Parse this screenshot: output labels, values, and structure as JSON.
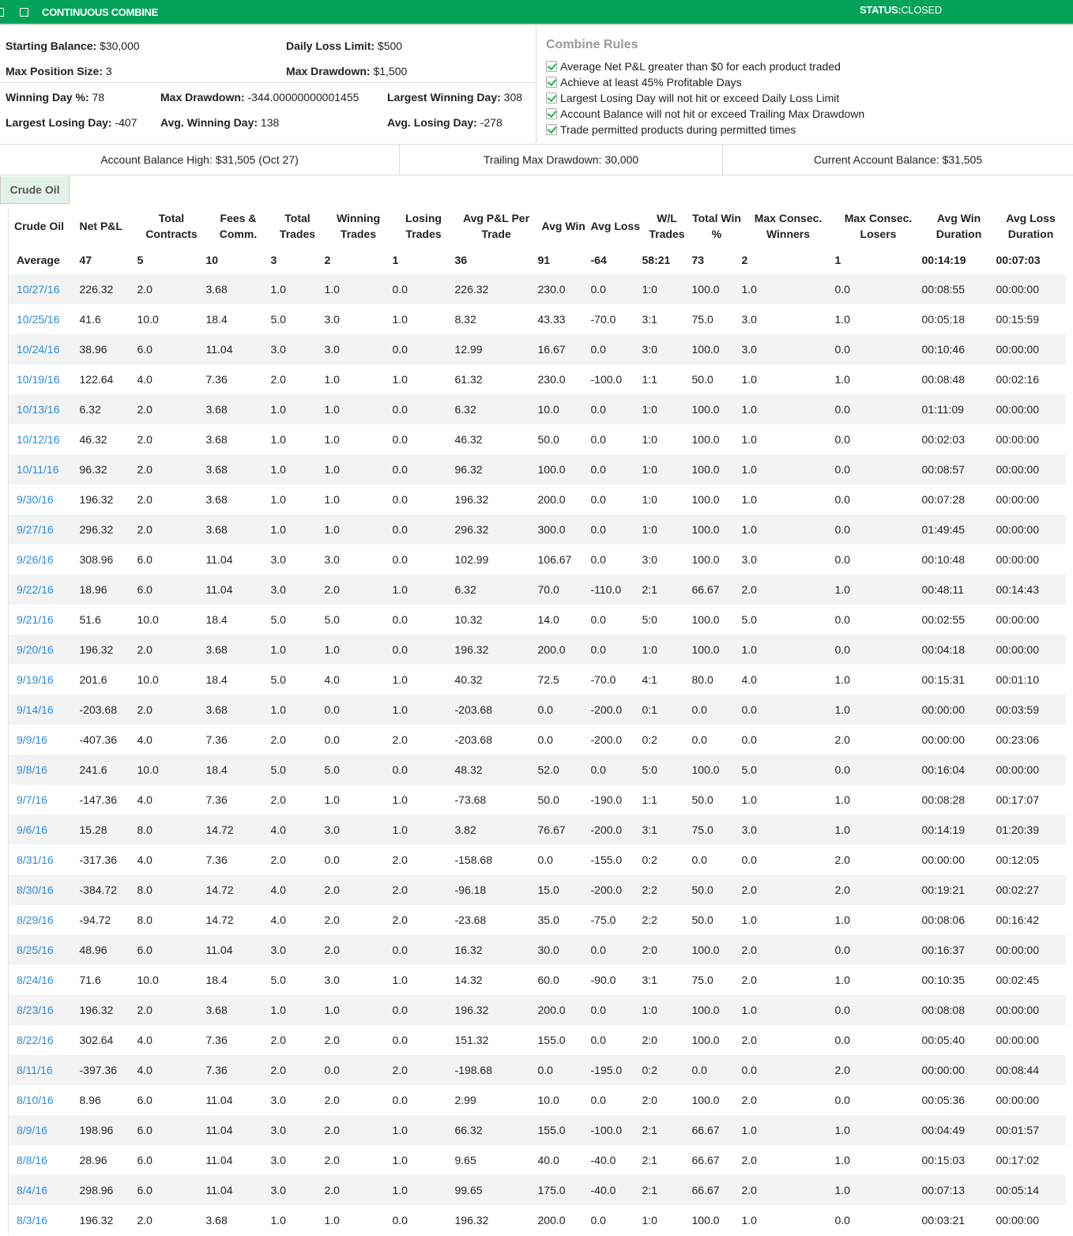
{
  "header": {
    "title": "CONTINUOUS COMBINE",
    "status_label": "STATUS:",
    "status_value": "CLOSED"
  },
  "settings": {
    "starting_balance": {
      "label": "Starting Balance:",
      "value": "$30,000"
    },
    "daily_loss_limit": {
      "label": "Daily Loss Limit:",
      "value": "$500"
    },
    "max_position_size": {
      "label": "Max Position Size:",
      "value": "3"
    },
    "max_drawdown": {
      "label": "Max Drawdown:",
      "value": "$1,500"
    }
  },
  "stats": {
    "winning_day_pct": {
      "label": "Winning Day %:",
      "value": "78"
    },
    "max_drawdown": {
      "label": "Max Drawdown:",
      "value": "-344.00000000001455"
    },
    "largest_winning_day": {
      "label": "Largest Winning Day:",
      "value": "308"
    },
    "largest_losing_day": {
      "label": "Largest Losing Day:",
      "value": "-407"
    },
    "avg_winning_day": {
      "label": "Avg. Winning Day:",
      "value": "138"
    },
    "avg_losing_day": {
      "label": "Avg. Losing Day:",
      "value": "-278"
    }
  },
  "rules": {
    "title": "Combine Rules",
    "items": [
      {
        "label": "Average Net P&L greater than $0 for each product traded",
        "checked": true
      },
      {
        "label": "Achieve at least 45% Profitable Days",
        "checked": true
      },
      {
        "label": "Largest Losing Day will not hit or exceed Daily Loss Limit",
        "checked": true
      },
      {
        "label": "Account Balance will not hit or exceed Trailing Max Drawdown",
        "checked": true
      },
      {
        "label": "Trade permitted products during permitted times",
        "checked": true
      }
    ]
  },
  "balances": {
    "high": "Account Balance High: $31,505 (Oct 27)",
    "trailing": "Trailing Max Drawdown: 30,000",
    "current": "Current Account Balance: $31,505"
  },
  "tabs": [
    {
      "label": "Crude Oil",
      "active": true
    }
  ],
  "table": {
    "headers": [
      "Crude Oil",
      "Net P&L",
      "Total Contracts",
      "Fees & Comm.",
      "Total Trades",
      "Winning Trades",
      "Losing Trades",
      "Avg P&L Per Trade",
      "Avg Win",
      "Avg Loss",
      "W/L Trades",
      "Total Win %",
      "Max Consec. Winners",
      "Max Consec. Losers",
      "Avg Win Duration",
      "Avg Loss Duration"
    ],
    "average": [
      "Average",
      "47",
      "5",
      "10",
      "3",
      "2",
      "1",
      "36",
      "91",
      "-64",
      "58:21",
      "73",
      "2",
      "1",
      "00:14:19",
      "00:07:03"
    ],
    "rows": [
      [
        "10/27/16",
        "226.32",
        "2.0",
        "3.68",
        "1.0",
        "1.0",
        "0.0",
        "226.32",
        "230.0",
        "0.0",
        "1:0",
        "100.0",
        "1.0",
        "0.0",
        "00:08:55",
        "00:00:00"
      ],
      [
        "10/25/16",
        "41.6",
        "10.0",
        "18.4",
        "5.0",
        "3.0",
        "1.0",
        "8.32",
        "43.33",
        "-70.0",
        "3:1",
        "75.0",
        "3.0",
        "1.0",
        "00:05:18",
        "00:15:59"
      ],
      [
        "10/24/16",
        "38.96",
        "6.0",
        "11.04",
        "3.0",
        "3.0",
        "0.0",
        "12.99",
        "16.67",
        "0.0",
        "3:0",
        "100.0",
        "3.0",
        "0.0",
        "00:10:46",
        "00:00:00"
      ],
      [
        "10/19/16",
        "122.64",
        "4.0",
        "7.36",
        "2.0",
        "1.0",
        "1.0",
        "61.32",
        "230.0",
        "-100.0",
        "1:1",
        "50.0",
        "1.0",
        "1.0",
        "00:08:48",
        "00:02:16"
      ],
      [
        "10/13/16",
        "6.32",
        "2.0",
        "3.68",
        "1.0",
        "1.0",
        "0.0",
        "6.32",
        "10.0",
        "0.0",
        "1:0",
        "100.0",
        "1.0",
        "0.0",
        "01:11:09",
        "00:00:00"
      ],
      [
        "10/12/16",
        "46.32",
        "2.0",
        "3.68",
        "1.0",
        "1.0",
        "0.0",
        "46.32",
        "50.0",
        "0.0",
        "1:0",
        "100.0",
        "1.0",
        "0.0",
        "00:02:03",
        "00:00:00"
      ],
      [
        "10/11/16",
        "96.32",
        "2.0",
        "3.68",
        "1.0",
        "1.0",
        "0.0",
        "96.32",
        "100.0",
        "0.0",
        "1:0",
        "100.0",
        "1.0",
        "0.0",
        "00:08:57",
        "00:00:00"
      ],
      [
        "9/30/16",
        "196.32",
        "2.0",
        "3.68",
        "1.0",
        "1.0",
        "0.0",
        "196.32",
        "200.0",
        "0.0",
        "1:0",
        "100.0",
        "1.0",
        "0.0",
        "00:07:28",
        "00:00:00"
      ],
      [
        "9/27/16",
        "296.32",
        "2.0",
        "3.68",
        "1.0",
        "1.0",
        "0.0",
        "296.32",
        "300.0",
        "0.0",
        "1:0",
        "100.0",
        "1.0",
        "0.0",
        "01:49:45",
        "00:00:00"
      ],
      [
        "9/26/16",
        "308.96",
        "6.0",
        "11.04",
        "3.0",
        "3.0",
        "0.0",
        "102.99",
        "106.67",
        "0.0",
        "3:0",
        "100.0",
        "3.0",
        "0.0",
        "00:10:48",
        "00:00:00"
      ],
      [
        "9/22/16",
        "18.96",
        "6.0",
        "11.04",
        "3.0",
        "2.0",
        "1.0",
        "6.32",
        "70.0",
        "-110.0",
        "2:1",
        "66.67",
        "2.0",
        "1.0",
        "00:48:11",
        "00:14:43"
      ],
      [
        "9/21/16",
        "51.6",
        "10.0",
        "18.4",
        "5.0",
        "5.0",
        "0.0",
        "10.32",
        "14.0",
        "0.0",
        "5:0",
        "100.0",
        "5.0",
        "0.0",
        "00:02:55",
        "00:00:00"
      ],
      [
        "9/20/16",
        "196.32",
        "2.0",
        "3.68",
        "1.0",
        "1.0",
        "0.0",
        "196.32",
        "200.0",
        "0.0",
        "1:0",
        "100.0",
        "1.0",
        "0.0",
        "00:04:18",
        "00:00:00"
      ],
      [
        "9/19/16",
        "201.6",
        "10.0",
        "18.4",
        "5.0",
        "4.0",
        "1.0",
        "40.32",
        "72.5",
        "-70.0",
        "4:1",
        "80.0",
        "4.0",
        "1.0",
        "00:15:31",
        "00:01:10"
      ],
      [
        "9/14/16",
        "-203.68",
        "2.0",
        "3.68",
        "1.0",
        "0.0",
        "1.0",
        "-203.68",
        "0.0",
        "-200.0",
        "0:1",
        "0.0",
        "0.0",
        "1.0",
        "00:00:00",
        "00:03:59"
      ],
      [
        "9/9/16",
        "-407.36",
        "4.0",
        "7.36",
        "2.0",
        "0.0",
        "2.0",
        "-203.68",
        "0.0",
        "-200.0",
        "0:2",
        "0.0",
        "0.0",
        "2.0",
        "00:00:00",
        "00:23:06"
      ],
      [
        "9/8/16",
        "241.6",
        "10.0",
        "18.4",
        "5.0",
        "5.0",
        "0.0",
        "48.32",
        "52.0",
        "0.0",
        "5:0",
        "100.0",
        "5.0",
        "0.0",
        "00:16:04",
        "00:00:00"
      ],
      [
        "9/7/16",
        "-147.36",
        "4.0",
        "7.36",
        "2.0",
        "1.0",
        "1.0",
        "-73.68",
        "50.0",
        "-190.0",
        "1:1",
        "50.0",
        "1.0",
        "1.0",
        "00:08:28",
        "00:17:07"
      ],
      [
        "9/6/16",
        "15.28",
        "8.0",
        "14.72",
        "4.0",
        "3.0",
        "1.0",
        "3.82",
        "76.67",
        "-200.0",
        "3:1",
        "75.0",
        "3.0",
        "1.0",
        "00:14:19",
        "01:20:39"
      ],
      [
        "8/31/16",
        "-317.36",
        "4.0",
        "7.36",
        "2.0",
        "0.0",
        "2.0",
        "-158.68",
        "0.0",
        "-155.0",
        "0:2",
        "0.0",
        "0.0",
        "2.0",
        "00:00:00",
        "00:12:05"
      ],
      [
        "8/30/16",
        "-384.72",
        "8.0",
        "14.72",
        "4.0",
        "2.0",
        "2.0",
        "-96.18",
        "15.0",
        "-200.0",
        "2:2",
        "50.0",
        "2.0",
        "2.0",
        "00:19:21",
        "00:02:27"
      ],
      [
        "8/29/16",
        "-94.72",
        "8.0",
        "14.72",
        "4.0",
        "2.0",
        "2.0",
        "-23.68",
        "35.0",
        "-75.0",
        "2:2",
        "50.0",
        "1.0",
        "1.0",
        "00:08:06",
        "00:16:42"
      ],
      [
        "8/25/16",
        "48.96",
        "6.0",
        "11.04",
        "3.0",
        "2.0",
        "0.0",
        "16.32",
        "30.0",
        "0.0",
        "2:0",
        "100.0",
        "2.0",
        "0.0",
        "00:16:37",
        "00:00:00"
      ],
      [
        "8/24/16",
        "71.6",
        "10.0",
        "18.4",
        "5.0",
        "3.0",
        "1.0",
        "14.32",
        "60.0",
        "-90.0",
        "3:1",
        "75.0",
        "2.0",
        "1.0",
        "00:10:35",
        "00:02:45"
      ],
      [
        "8/23/16",
        "196.32",
        "2.0",
        "3.68",
        "1.0",
        "1.0",
        "0.0",
        "196.32",
        "200.0",
        "0.0",
        "1:0",
        "100.0",
        "1.0",
        "0.0",
        "00:08:08",
        "00:00:00"
      ],
      [
        "8/22/16",
        "302.64",
        "4.0",
        "7.36",
        "2.0",
        "2.0",
        "0.0",
        "151.32",
        "155.0",
        "0.0",
        "2:0",
        "100.0",
        "2.0",
        "0.0",
        "00:05:40",
        "00:00:00"
      ],
      [
        "8/11/16",
        "-397.36",
        "4.0",
        "7.36",
        "2.0",
        "0.0",
        "2.0",
        "-198.68",
        "0.0",
        "-195.0",
        "0:2",
        "0.0",
        "0.0",
        "2.0",
        "00:00:00",
        "00:08:44"
      ],
      [
        "8/10/16",
        "8.96",
        "6.0",
        "11.04",
        "3.0",
        "2.0",
        "0.0",
        "2.99",
        "10.0",
        "0.0",
        "2:0",
        "100.0",
        "2.0",
        "0.0",
        "00:05:36",
        "00:00:00"
      ],
      [
        "8/9/16",
        "198.96",
        "6.0",
        "11.04",
        "3.0",
        "2.0",
        "1.0",
        "66.32",
        "155.0",
        "-100.0",
        "2:1",
        "66.67",
        "1.0",
        "1.0",
        "00:04:49",
        "00:01:57"
      ],
      [
        "8/8/16",
        "28.96",
        "6.0",
        "11.04",
        "3.0",
        "2.0",
        "1.0",
        "9.65",
        "40.0",
        "-40.0",
        "2:1",
        "66.67",
        "2.0",
        "1.0",
        "00:15:03",
        "00:17:02"
      ],
      [
        "8/4/16",
        "298.96",
        "6.0",
        "11.04",
        "3.0",
        "2.0",
        "1.0",
        "99.65",
        "175.0",
        "-40.0",
        "2:1",
        "66.67",
        "2.0",
        "1.0",
        "00:07:13",
        "00:05:14"
      ],
      [
        "8/3/16",
        "196.32",
        "2.0",
        "3.68",
        "1.0",
        "1.0",
        "0.0",
        "196.32",
        "200.0",
        "0.0",
        "1:0",
        "100.0",
        "1.0",
        "0.0",
        "00:03:21",
        "00:00:00"
      ]
    ]
  },
  "colors": {
    "brand_green": "#03a259",
    "link_blue": "#2a8be0",
    "check_green": "#1fb25a"
  }
}
